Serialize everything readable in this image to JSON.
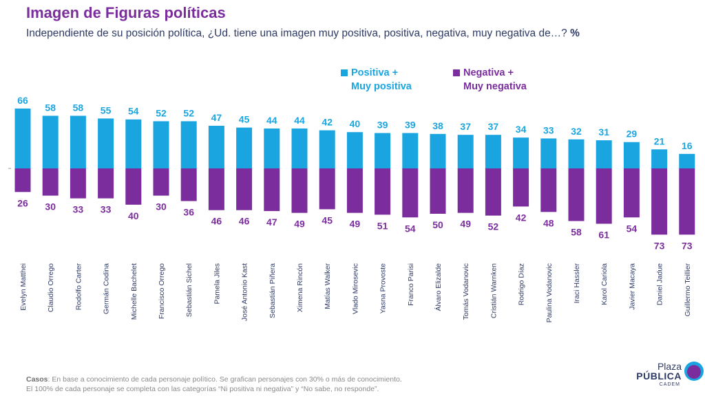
{
  "header": {
    "title": "Imagen de Figuras políticas",
    "subtitle": "Independiente de su posición política, ¿Ud. tiene una imagen muy positiva, positiva, negativa, muy negativa de…?",
    "unit": "%"
  },
  "legend": {
    "positive": {
      "line1": "Positiva +",
      "line2": "Muy positiva"
    },
    "negative": {
      "line1": "Negativa +",
      "line2": "Muy negativa"
    }
  },
  "colors": {
    "positive": "#1BA5E0",
    "negative": "#7B2D9E",
    "title": "#7B2D9E",
    "text": "#2E3A66"
  },
  "chart_data": {
    "type": "bar",
    "categories": [
      "Evelyn Matthei",
      "Claudio Orrego",
      "Rodolfo Carter",
      "Germán Codina",
      "Michelle Bachelet",
      "Francisco Orrego",
      "Sebastián Sichel",
      "Pamela Jiles",
      "José Antonio Kast",
      "Sebastián Piñera",
      "Ximena Rincón",
      "Matías Walker",
      "Vlado Mirosevic",
      "Yasna Provoste",
      "Franco Parisi",
      "Álvaro Elizalde",
      "Tomás Vodanovic",
      "Cristián Warnken",
      "Rodrigo Díaz",
      "Paulina Vodanovic",
      "Iraci Hassler",
      "Karol Cariola",
      "Javier Macaya",
      "Daniel Jadue",
      "Guillermo Teillier"
    ],
    "series": [
      {
        "name": "Positiva + Muy positiva",
        "values": [
          66,
          58,
          58,
          55,
          54,
          52,
          52,
          47,
          45,
          44,
          44,
          42,
          40,
          39,
          39,
          38,
          37,
          37,
          34,
          33,
          32,
          31,
          29,
          21,
          16
        ]
      },
      {
        "name": "Negativa + Muy negativa",
        "values": [
          26,
          30,
          33,
          33,
          40,
          30,
          36,
          46,
          46,
          47,
          49,
          45,
          49,
          51,
          54,
          50,
          49,
          52,
          42,
          48,
          58,
          61,
          54,
          73,
          73
        ]
      }
    ],
    "legend_position": "top-center",
    "grid": false
  },
  "footer": {
    "casos_label": "Casos",
    "line1": ": En base a conocimiento de cada personaje político. Se grafican personajes con 30% o más de conocimiento.",
    "line2": "El 100% de cada personaje se completa con las categorías “Ni positiva ni negativa” y “No sabe, no responde”."
  },
  "logo": {
    "line1": "Plaza",
    "line2": "PÚBLICA",
    "line3": "CADEM"
  }
}
